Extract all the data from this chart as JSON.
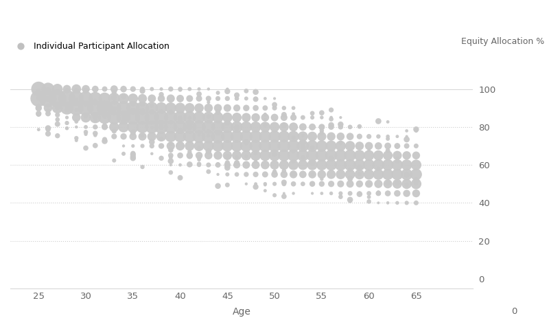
{
  "title_left": "Individual Participant Allocation",
  "title_right": "Equity Allocation %",
  "xlabel": "Age",
  "dot_color": "#c8c8c8",
  "dot_alpha": 0.95,
  "background_color": "#ffffff",
  "grid_color": "#cccccc",
  "text_color": "#666666",
  "xlim": [
    22,
    71
  ],
  "ylim": [
    -5,
    112
  ],
  "yticks": [
    0,
    20,
    40,
    60,
    80,
    100
  ],
  "xticks": [
    25,
    30,
    35,
    40,
    45,
    50,
    55,
    60,
    65
  ],
  "figsize": [
    8.0,
    4.79
  ],
  "dpi": 100,
  "legend_dot_size": 55,
  "legend_dot_color": "#c0c0c0"
}
